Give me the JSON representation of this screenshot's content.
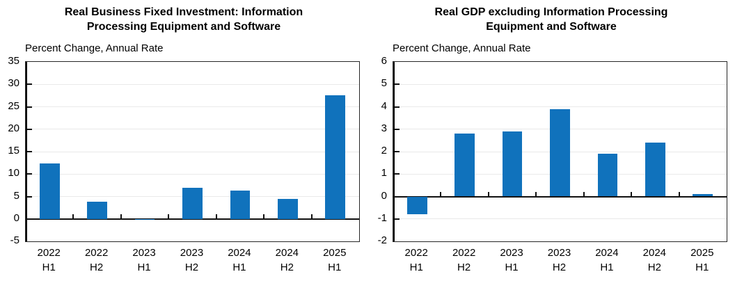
{
  "figure_note": "Two-panel bar chart figure",
  "accent_color": "#1072BC",
  "chart_data": [
    {
      "type": "bar",
      "title": "Real Business Fixed Investment: Information Processing Equipment and Software",
      "subtitle": "Percent Change, Annual Rate",
      "categories": [
        "2022",
        "2022",
        "2023",
        "2023",
        "2024",
        "2024",
        "2025"
      ],
      "categories_line2": [
        "H1",
        "H2",
        "H1",
        "H2",
        "H1",
        "H2",
        "H1"
      ],
      "values": [
        12.4,
        3.9,
        -0.1,
        6.9,
        6.3,
        4.4,
        27.5
      ],
      "ylim": [
        -5,
        35
      ],
      "y_ticks": [
        35,
        30,
        25,
        20,
        15,
        10,
        5,
        0,
        -5
      ],
      "grid": true,
      "legend": null,
      "bar_color": "#1072BC"
    },
    {
      "type": "bar",
      "title": "Real GDP excluding Information Processing Equipment and Software",
      "subtitle": "Percent Change, Annual Rate",
      "categories": [
        "2022",
        "2022",
        "2023",
        "2023",
        "2024",
        "2024",
        "2025"
      ],
      "categories_line2": [
        "H1",
        "H2",
        "H1",
        "H2",
        "H1",
        "H2",
        "H1"
      ],
      "values": [
        -0.8,
        2.8,
        2.9,
        3.9,
        1.9,
        2.4,
        0.1
      ],
      "ylim": [
        -2,
        6
      ],
      "y_ticks": [
        6,
        5,
        4,
        3,
        2,
        1,
        0,
        -1,
        -2
      ],
      "grid": true,
      "legend": null,
      "bar_color": "#1072BC"
    }
  ]
}
